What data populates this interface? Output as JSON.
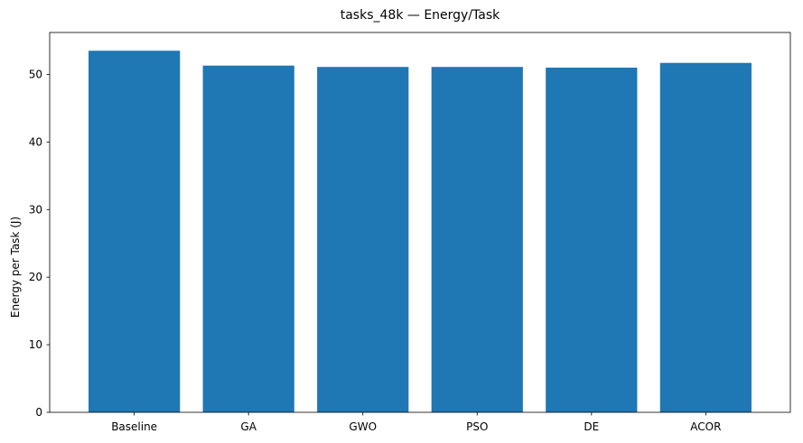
{
  "chart_data": {
    "type": "bar",
    "title": "tasks_48k — Energy/Task",
    "xlabel": "",
    "ylabel": "Energy per Task (J)",
    "categories": [
      "Baseline",
      "GA",
      "GWO",
      "PSO",
      "DE",
      "ACOR"
    ],
    "values": [
      53.5,
      51.3,
      51.1,
      51.1,
      51.0,
      51.7
    ],
    "ylim": [
      0,
      56.2
    ],
    "yticks": [
      0,
      10,
      20,
      30,
      40,
      50
    ],
    "bar_color": "#1f77b4",
    "grid": false,
    "legend": "none"
  }
}
